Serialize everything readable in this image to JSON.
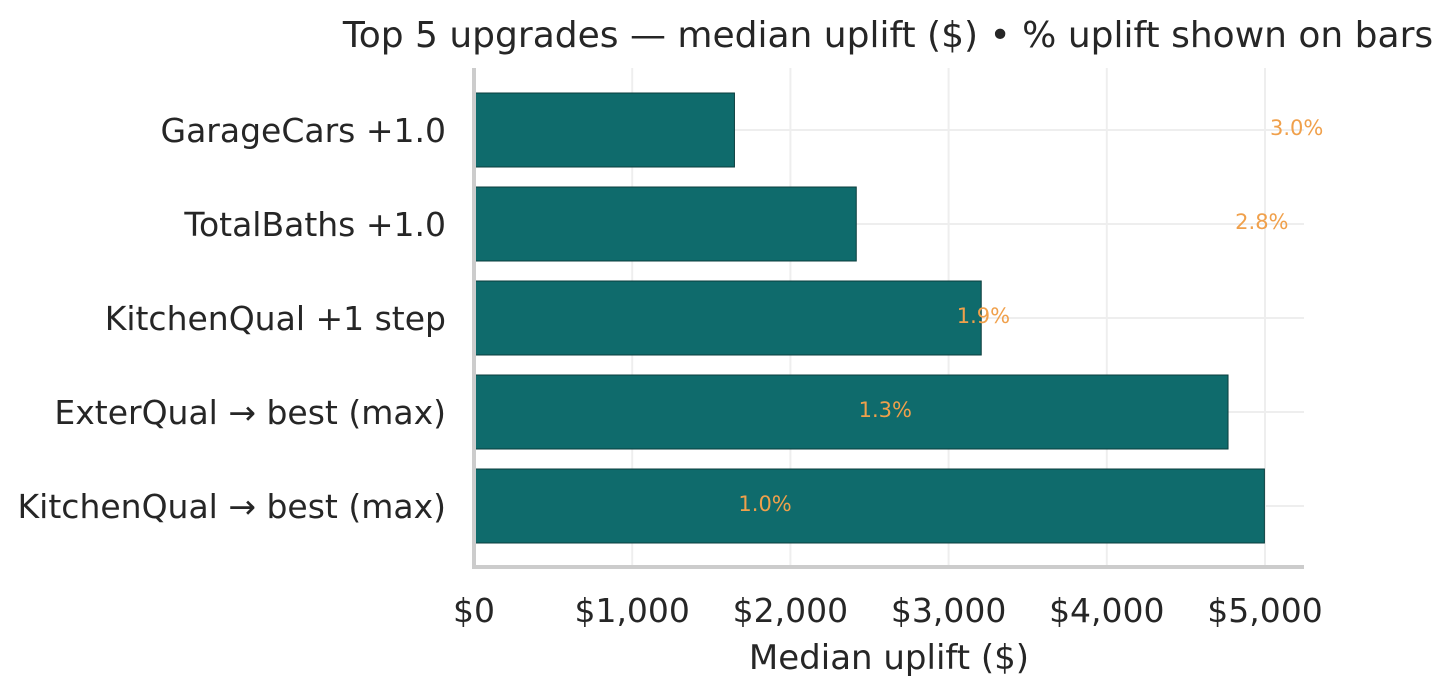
{
  "chart_data": {
    "type": "bar",
    "orientation": "horizontal",
    "title": "Top 5 upgrades — median uplift ($)  •  % uplift shown on bars",
    "xlabel": "Median uplift ($)",
    "ylabel": "",
    "xlim": [
      0,
      5250
    ],
    "xticks": [
      0,
      1000,
      2000,
      3000,
      4000,
      5000
    ],
    "xtick_labels": [
      "$0",
      "$1,000",
      "$2,000",
      "$3,000",
      "$4,000",
      "$5,000"
    ],
    "grid": true,
    "categories": [
      "GarageCars +1.0",
      "TotalBaths +1.0",
      "KitchenQual +1 step",
      "ExterQual → best (max)",
      "KitchenQual → best (max)"
    ],
    "values": [
      1640,
      2410,
      3200,
      4760,
      4990
    ],
    "pct_labels": [
      "3.0%",
      "2.8%",
      "1.9%",
      "1.3%",
      "1.0%"
    ],
    "pct_label_values": [
      5200,
      4980,
      3220,
      2600,
      1840
    ],
    "colors": {
      "bar": "#0f6b6c",
      "bar_edge": "#0a3d3d",
      "pct_text": "#f0a04b",
      "grid": "#eeeeee",
      "axis": "#cccccc"
    }
  }
}
